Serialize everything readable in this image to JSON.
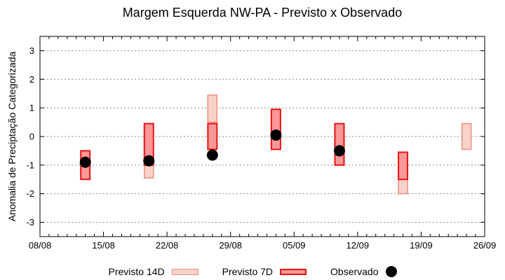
{
  "title": "Margem Esquerda NW-PA - Previsto x Observado",
  "chart_data": {
    "type": "bar",
    "subtype": "ranged-category-bars-with-observed-dots",
    "title": "Margem Esquerda NW-PA - Previsto x Observado",
    "xlabel": "",
    "ylabel": "Anomalia de Preciptação Categorizada",
    "ylim": [
      -3.5,
      3.5
    ],
    "yticks": [
      3,
      2,
      1,
      0,
      -1,
      -2,
      -3
    ],
    "x_domain_days": [
      0,
      49
    ],
    "xticks": [
      {
        "day": 0,
        "label": "08/08"
      },
      {
        "day": 7,
        "label": "15/08"
      },
      {
        "day": 14,
        "label": "22/08"
      },
      {
        "day": 21,
        "label": "29/08"
      },
      {
        "day": 28,
        "label": "05/09"
      },
      {
        "day": 35,
        "label": "12/09"
      },
      {
        "day": 42,
        "label": "19/09"
      },
      {
        "day": 49,
        "label": "26/09"
      }
    ],
    "grid": "horizontal-dotted",
    "legend_position": "bottom-center",
    "colors": {
      "grid": "#8a8a8a",
      "axis": "#000000"
    },
    "series": [
      {
        "name": "Previsto 14D",
        "type": "range",
        "fill": "#fad2cc",
        "border": "#e8907c",
        "border_width": 1.5,
        "points": [
          {
            "date": "20/08",
            "day": 12,
            "low": -1.45,
            "high": 0.45
          },
          {
            "date": "27/08",
            "day": 19,
            "low": 0.5,
            "high": 1.45
          },
          {
            "date": "17/09",
            "day": 40,
            "low": -2.0,
            "high": -0.55
          },
          {
            "date": "24/09",
            "day": 47,
            "low": -0.45,
            "high": 0.45
          }
        ]
      },
      {
        "name": "Previsto 7D",
        "type": "range",
        "fill": "#fa9797",
        "border": "#e81414",
        "border_width": 2,
        "points": [
          {
            "date": "13/08",
            "day": 5,
            "low": -1.5,
            "high": -0.5
          },
          {
            "date": "20/08",
            "day": 12,
            "low": -1.0,
            "high": 0.45
          },
          {
            "date": "27/08",
            "day": 19,
            "low": -0.45,
            "high": 0.45
          },
          {
            "date": "03/09",
            "day": 26,
            "low": -0.45,
            "high": 0.95
          },
          {
            "date": "10/09",
            "day": 33,
            "low": -1.0,
            "high": 0.45
          },
          {
            "date": "17/09",
            "day": 40,
            "low": -1.5,
            "high": -0.55
          }
        ]
      },
      {
        "name": "Observado",
        "type": "dot",
        "fill": "#000000",
        "points": [
          {
            "date": "13/08",
            "day": 5,
            "value": -0.9
          },
          {
            "date": "20/08",
            "day": 12,
            "value": -0.85
          },
          {
            "date": "27/08",
            "day": 19,
            "value": -0.65
          },
          {
            "date": "03/09",
            "day": 26,
            "value": 0.05
          },
          {
            "date": "10/09",
            "day": 33,
            "value": -0.5
          }
        ]
      }
    ]
  }
}
